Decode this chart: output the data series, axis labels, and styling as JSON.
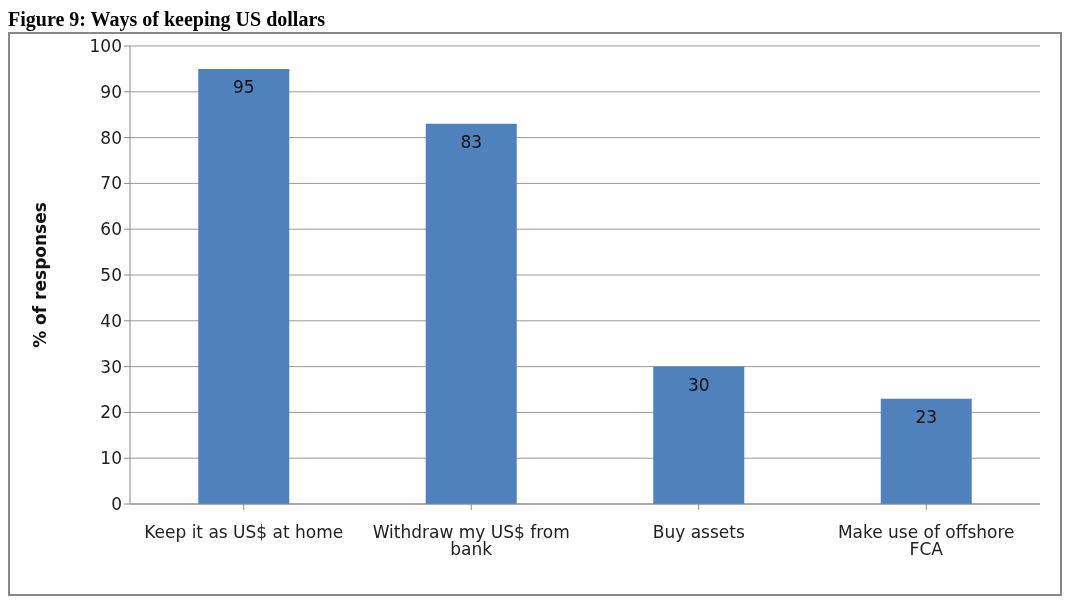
{
  "chart_data": {
    "type": "bar",
    "title": "Figure 9: Ways of keeping US dollars",
    "ylabel": "% of responses",
    "categories": [
      "Keep it as US$ at home",
      "Withdraw my US$ from bank",
      "Buy assets",
      "Make use of offshore FCA"
    ],
    "values": [
      95,
      83,
      30,
      23
    ],
    "color": "#4f81bd",
    "ylim": [
      0,
      100
    ],
    "yticks": [
      0,
      10,
      20,
      30,
      40,
      50,
      60,
      70,
      80,
      90,
      100
    ],
    "grid": "y",
    "data_labels": true,
    "legend": false
  }
}
